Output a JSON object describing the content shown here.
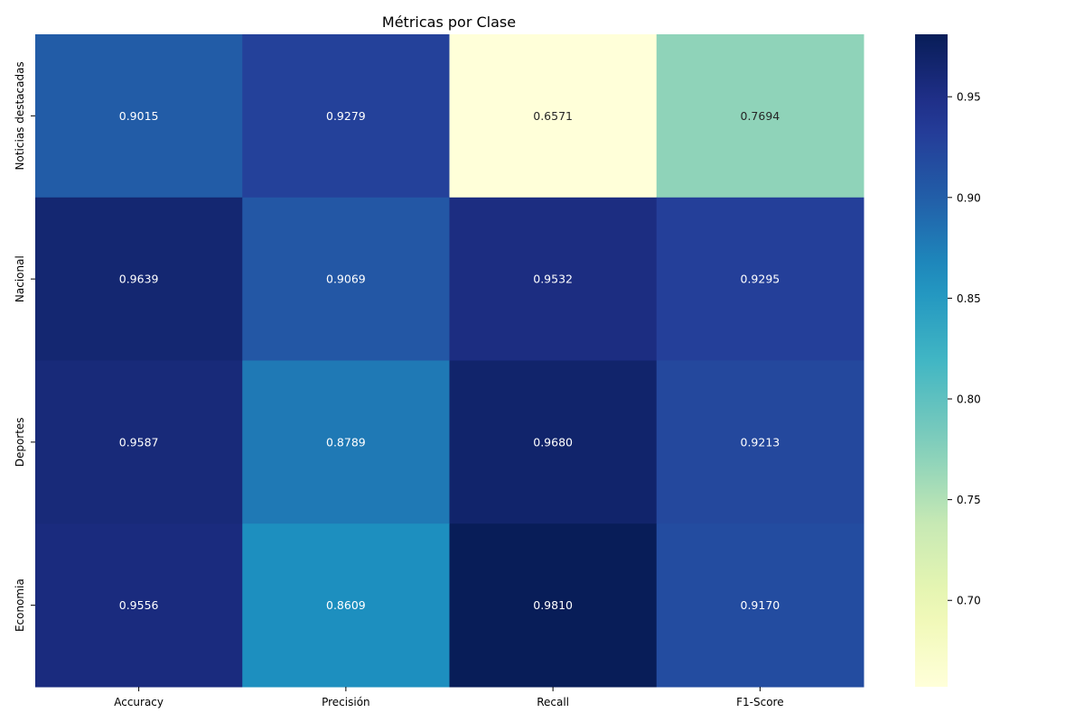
{
  "chart_data": {
    "type": "heatmap",
    "title": "Métricas por Clase",
    "x_categories": [
      "Accuracy",
      "Precisión",
      "Recall",
      "F1-Score"
    ],
    "y_categories": [
      "Noticias destacadas",
      "Nacional",
      "Deportes",
      "Economia"
    ],
    "values": [
      [
        0.9015,
        0.9279,
        0.6571,
        0.7694
      ],
      [
        0.9639,
        0.9069,
        0.9532,
        0.9295
      ],
      [
        0.9587,
        0.8789,
        0.968,
        0.9213
      ],
      [
        0.9556,
        0.8609,
        0.981,
        0.917
      ]
    ],
    "value_labels": [
      [
        "0.9015",
        "0.9279",
        "0.6571",
        "0.7694"
      ],
      [
        "0.9639",
        "0.9069",
        "0.9532",
        "0.9295"
      ],
      [
        "0.9587",
        "0.8789",
        "0.9680",
        "0.9213"
      ],
      [
        "0.9556",
        "0.8609",
        "0.9810",
        "0.9170"
      ]
    ],
    "colormap": "YlGnBu",
    "colorbar": {
      "range": [
        0.6571,
        0.981
      ],
      "ticks": [
        0.7,
        0.75,
        0.8,
        0.85,
        0.9,
        0.95
      ],
      "tick_labels": [
        "0.70",
        "0.75",
        "0.80",
        "0.85",
        "0.90",
        "0.95"
      ]
    }
  }
}
